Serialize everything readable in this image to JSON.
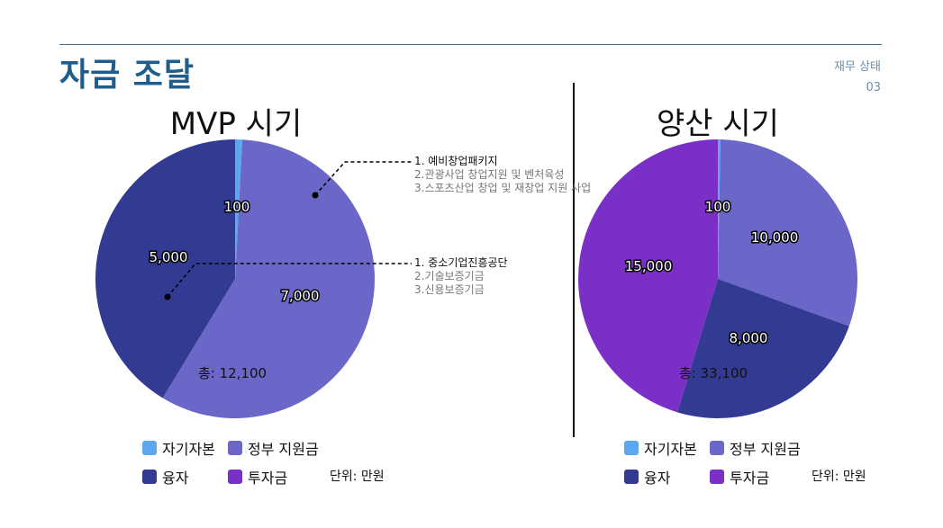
{
  "header": {
    "title": "자금 조달",
    "section_name": "재무 상태",
    "page_number": "03"
  },
  "legend": {
    "items": [
      {
        "label": "자기자본",
        "color": "#5ba8f0"
      },
      {
        "label": "정부 지원금",
        "color": "#6b67c9"
      },
      {
        "label": "융자",
        "color": "#323a92"
      },
      {
        "label": "투자금",
        "color": "#7a30c6"
      }
    ],
    "unit_label": "단위: 만원"
  },
  "annotations": {
    "gov_support": [
      "1. 예비창업패키지",
      "2.관광사업 창업지원 및 벤처육성",
      "3.스포츠산업 창업 및 재창업 지원 사업"
    ],
    "loans": [
      "1. 중소기업진흥공단",
      "2.기술보증기금",
      "3.신용보증기금"
    ]
  },
  "chart_data": [
    {
      "type": "pie",
      "title": "MVP 시기",
      "categories": [
        "자기자본",
        "정부 지원금",
        "융자",
        "투자금"
      ],
      "values": [
        100,
        7000,
        5000,
        0
      ],
      "value_labels": [
        "100",
        "7,000",
        "5,000",
        ""
      ],
      "colors": [
        "#5ba8f0",
        "#6b67c9",
        "#323a92",
        "#7a30c6"
      ],
      "total_label": "총: 12,100",
      "legend_position": "bottom"
    },
    {
      "type": "pie",
      "title": "양산 시기",
      "categories": [
        "자기자본",
        "정부 지원금",
        "융자",
        "투자금"
      ],
      "values": [
        100,
        10000,
        8000,
        15000
      ],
      "value_labels": [
        "100",
        "10,000",
        "8,000",
        "15,000"
      ],
      "colors": [
        "#5ba8f0",
        "#6b67c9",
        "#323a92",
        "#7a30c6"
      ],
      "total_label": "총: 33,100",
      "legend_position": "bottom"
    }
  ]
}
